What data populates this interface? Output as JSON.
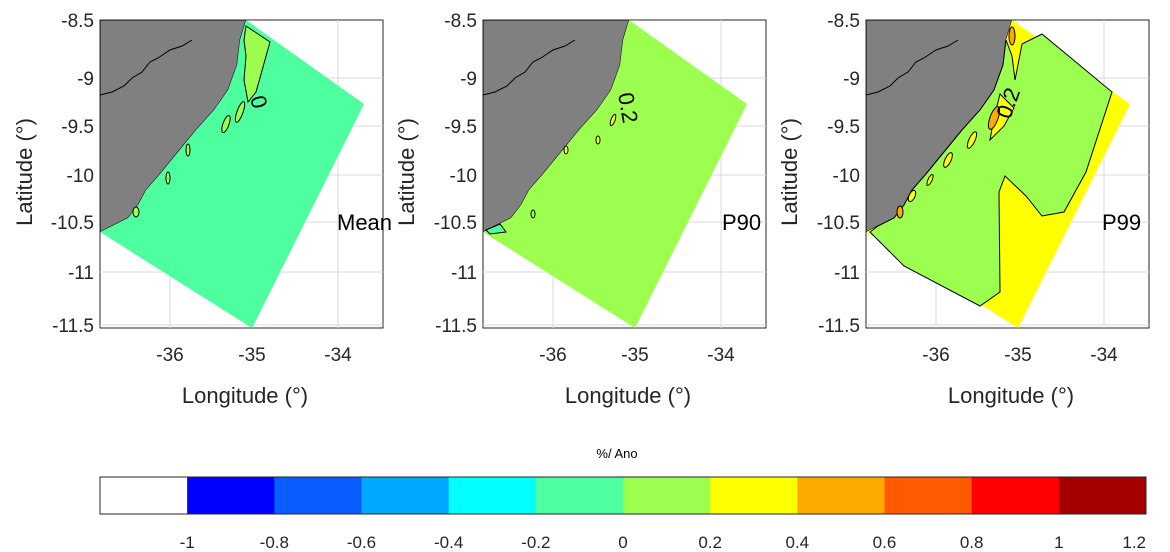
{
  "figure": {
    "panels": [
      {
        "name": "Mean",
        "tag": "Mean",
        "xlabel": "Longitude (°)",
        "ylabel": "Latitude (°)",
        "xticks": [
          "-36",
          "-35",
          "-34"
        ],
        "yticks": [
          "-8.5",
          "-9",
          "-9.5",
          "-10",
          "-10.5",
          "-11",
          "-11.5"
        ],
        "fill_color": "#4dff9f",
        "contour_label": "0"
      },
      {
        "name": "P90",
        "tag": "P90",
        "xlabel": "Longitude (°)",
        "ylabel": "Latitude (°)",
        "xticks": [
          "-36",
          "-35",
          "-34"
        ],
        "yticks": [
          "-8.5",
          "-9",
          "-9.5",
          "-10",
          "-10.5",
          "-11",
          "-11.5"
        ],
        "fill_color": "#9cff4f",
        "contour_label": "0.2"
      },
      {
        "name": "P99",
        "tag": "P99",
        "xlabel": "Longitude (°)",
        "ylabel": "Latitude (°)",
        "xticks": [
          "-36",
          "-35",
          "-34"
        ],
        "yticks": [
          "-8.5",
          "-9",
          "-9.5",
          "-10",
          "-10.5",
          "-11",
          "-11.5"
        ],
        "fill_color": "#ffff00",
        "contour_label": "0.2"
      }
    ],
    "axis_ranges": {
      "lon": [
        -36.7,
        -33.6
      ],
      "lat": [
        -11.6,
        -8.5
      ]
    },
    "land_color": "#808080",
    "colorbar": {
      "title": "%/ Ano",
      "ticks": [
        "-1",
        "-0.8",
        "-0.6",
        "-0.4",
        "-0.2",
        "0",
        "0.2",
        "0.4",
        "0.6",
        "0.8",
        "1",
        "1.2"
      ],
      "colors": [
        "#ffffff",
        "#0000ff",
        "#0a5dff",
        "#00a9ff",
        "#00ffff",
        "#4dff9f",
        "#9cff4f",
        "#ffff00",
        "#ffaa00",
        "#ff5a00",
        "#ff0000",
        "#a50000"
      ]
    }
  }
}
